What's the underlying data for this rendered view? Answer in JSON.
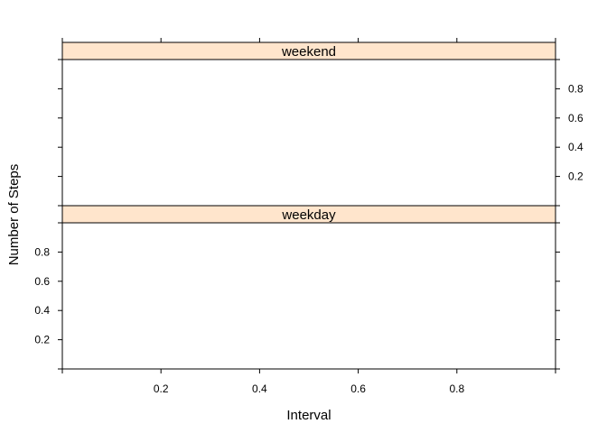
{
  "chart_data": {
    "type": "line",
    "layout": "lattice-panels",
    "xlabel": "Interval",
    "ylabel": "Number of Steps",
    "xlim": [
      0,
      1
    ],
    "ylim": [
      0,
      1
    ],
    "x_ticks": [
      0,
      0.2,
      0.4,
      0.6,
      0.8,
      1.0
    ],
    "x_tick_labels": [
      "",
      "0.2",
      "0.4",
      "0.6",
      "0.8",
      ""
    ],
    "y_ticks": [
      0,
      0.2,
      0.4,
      0.6,
      0.8,
      1.0
    ],
    "y_tick_labels": [
      "",
      "0.2",
      "0.4",
      "0.6",
      "0.8",
      ""
    ],
    "strip_color": "#ffe5cc",
    "panels": [
      {
        "label": "weekend",
        "y_labels_side": "right",
        "series": []
      },
      {
        "label": "weekday",
        "y_labels_side": "left",
        "series": []
      }
    ]
  }
}
